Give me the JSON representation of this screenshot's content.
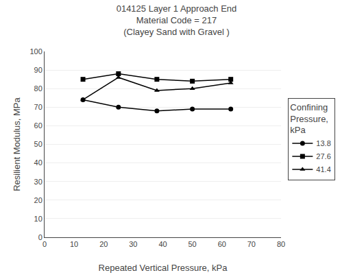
{
  "chart_data": {
    "type": "line",
    "title": "014125 Layer 1 Approach End\nMaterial Code = 217\n(Clayey Sand with Gravel )",
    "x_label": "Repeated Vertical Pressure, kPa",
    "y_label": "Resilient Modulus, MPa",
    "legend_title": "Confining\nPressure,\nkPa",
    "xlim": [
      0,
      80
    ],
    "ylim": [
      0,
      100
    ],
    "xticks": [
      0,
      10,
      20,
      30,
      40,
      50,
      60,
      70,
      80
    ],
    "yticks": [
      0,
      10,
      20,
      30,
      40,
      50,
      60,
      70,
      80,
      90,
      100
    ],
    "grid": "y",
    "legend": "right",
    "series": [
      {
        "name": "13.8",
        "color": "#000000",
        "marker": "circle",
        "x": [
          13,
          25,
          38,
          50,
          63
        ],
        "values": [
          74,
          70,
          68,
          69,
          69
        ]
      },
      {
        "name": "27.6",
        "color": "#000000",
        "marker": "square",
        "x": [
          13,
          25,
          38,
          50,
          63
        ],
        "values": [
          85,
          88,
          85,
          84,
          85
        ]
      },
      {
        "name": "41.4",
        "color": "#000000",
        "marker": "triangle",
        "x": [
          13,
          25,
          38,
          50,
          63
        ],
        "values": [
          74,
          86,
          79,
          80,
          83
        ]
      }
    ]
  }
}
